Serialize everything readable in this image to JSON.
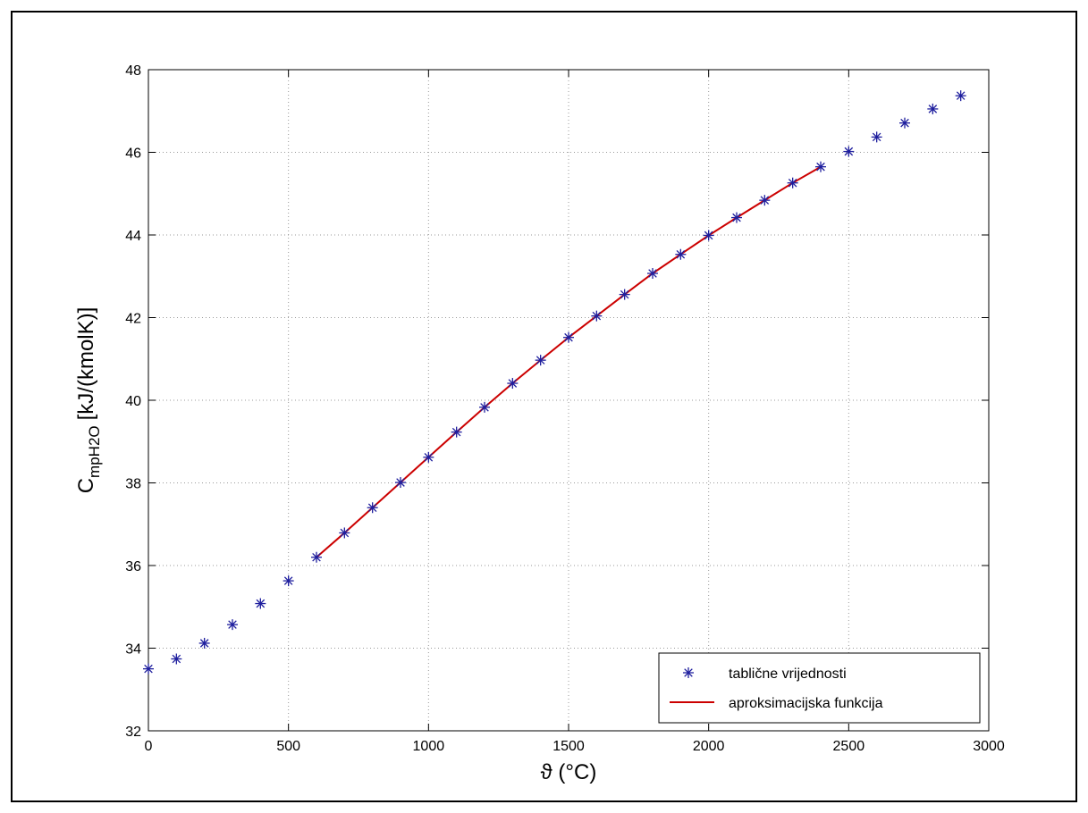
{
  "chart_data": {
    "type": "line",
    "title": "",
    "xlabel": "ϑ (°C)",
    "ylabel_main": "C",
    "ylabel_sub": "mpH2O",
    "ylabel_unit": "[kJ/(kmolK)]",
    "xlim": [
      0,
      3000
    ],
    "ylim": [
      32,
      48
    ],
    "xticks": [
      0,
      500,
      1000,
      1500,
      2000,
      2500,
      3000
    ],
    "yticks": [
      32,
      34,
      36,
      38,
      40,
      42,
      44,
      46,
      48
    ],
    "grid": true,
    "legend_position": "bottom-right",
    "colors": {
      "markers": "#1f1f9e",
      "line": "#cc0000"
    },
    "series": [
      {
        "name": "tablične vrijednosti",
        "style": "markers-asterisk",
        "x": [
          0,
          100,
          200,
          300,
          400,
          500,
          600,
          700,
          800,
          900,
          1000,
          1100,
          1200,
          1300,
          1400,
          1500,
          1600,
          1700,
          1800,
          1900,
          2000,
          2100,
          2200,
          2300,
          2400,
          2500,
          2600,
          2700,
          2800,
          2900
        ],
        "values": [
          33.5,
          33.74,
          34.12,
          34.57,
          35.08,
          35.63,
          36.2,
          36.79,
          37.4,
          38.01,
          38.62,
          39.23,
          39.83,
          40.41,
          40.97,
          41.52,
          42.04,
          42.56,
          43.07,
          43.53,
          43.99,
          44.42,
          44.84,
          45.26,
          45.65,
          46.02,
          46.37,
          46.71,
          47.05,
          47.37
        ]
      },
      {
        "name": "aproksimacijska funkcija",
        "style": "line",
        "x": [
          600,
          700,
          800,
          900,
          1000,
          1100,
          1200,
          1300,
          1400,
          1500,
          1600,
          1700,
          1800,
          1900,
          2000,
          2100,
          2200,
          2300,
          2400
        ],
        "values": [
          36.2,
          36.79,
          37.4,
          38.01,
          38.62,
          39.23,
          39.83,
          40.41,
          40.97,
          41.52,
          42.04,
          42.56,
          43.07,
          43.53,
          43.99,
          44.42,
          44.84,
          45.26,
          45.65
        ]
      }
    ]
  }
}
